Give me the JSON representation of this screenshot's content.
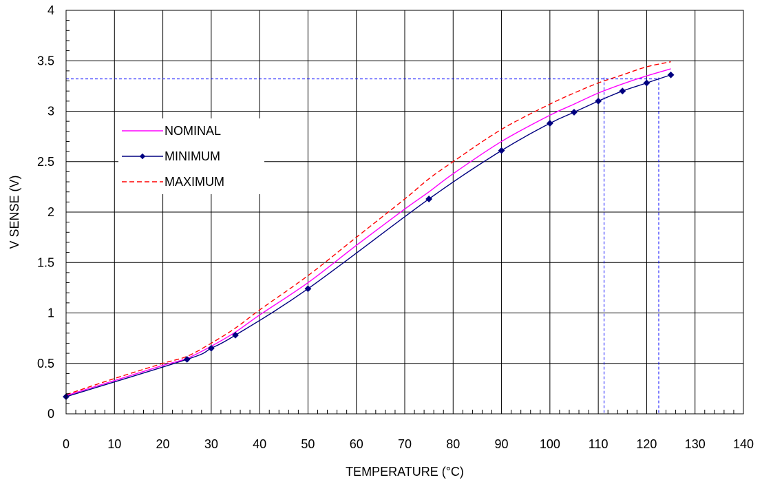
{
  "chart_data": {
    "type": "line",
    "title": "",
    "xlabel": "TEMPERATURE (°C)",
    "ylabel": "V SENSE (V)",
    "xlim": [
      0,
      140
    ],
    "ylim": [
      0,
      4
    ],
    "x_ticks": [
      0,
      10,
      20,
      30,
      40,
      50,
      60,
      70,
      80,
      90,
      100,
      110,
      120,
      130,
      140
    ],
    "y_ticks": [
      0,
      0.5,
      1,
      1.5,
      2,
      2.5,
      3,
      3.5,
      4
    ],
    "grid": true,
    "legend_position": "left",
    "series": [
      {
        "name": "NOMINAL",
        "color": "#ff00ff",
        "style": "solid",
        "x": [
          0,
          10,
          20,
          25,
          30,
          35,
          40,
          50,
          60,
          70,
          75,
          80,
          90,
          100,
          105,
          110,
          115,
          120,
          125
        ],
        "y": [
          0.18,
          0.33,
          0.48,
          0.55,
          0.67,
          0.81,
          0.98,
          1.3,
          1.67,
          2.03,
          2.2,
          2.38,
          2.7,
          2.96,
          3.07,
          3.18,
          3.27,
          3.35,
          3.42
        ]
      },
      {
        "name": "MINIMUM",
        "color": "#000080",
        "style": "solid-marker",
        "x": [
          0,
          25,
          30,
          35,
          50,
          75,
          90,
          100,
          105,
          110,
          115,
          120,
          125
        ],
        "y": [
          0.17,
          0.54,
          0.65,
          0.78,
          1.24,
          2.13,
          2.61,
          2.88,
          2.99,
          3.1,
          3.2,
          3.28,
          3.36
        ]
      },
      {
        "name": "MAXIMUM",
        "color": "#ff0000",
        "style": "dashed",
        "x": [
          0,
          10,
          20,
          25,
          30,
          35,
          40,
          50,
          60,
          70,
          75,
          80,
          90,
          100,
          105,
          110,
          115,
          120,
          125
        ],
        "y": [
          0.19,
          0.35,
          0.5,
          0.57,
          0.7,
          0.85,
          1.03,
          1.37,
          1.75,
          2.13,
          2.33,
          2.5,
          2.82,
          3.07,
          3.18,
          3.28,
          3.36,
          3.44,
          3.49
        ]
      }
    ],
    "reference_lines": {
      "color": "#0000ff",
      "horizontal_y": 3.32,
      "vertical_x": [
        111.2,
        122.5
      ]
    }
  }
}
